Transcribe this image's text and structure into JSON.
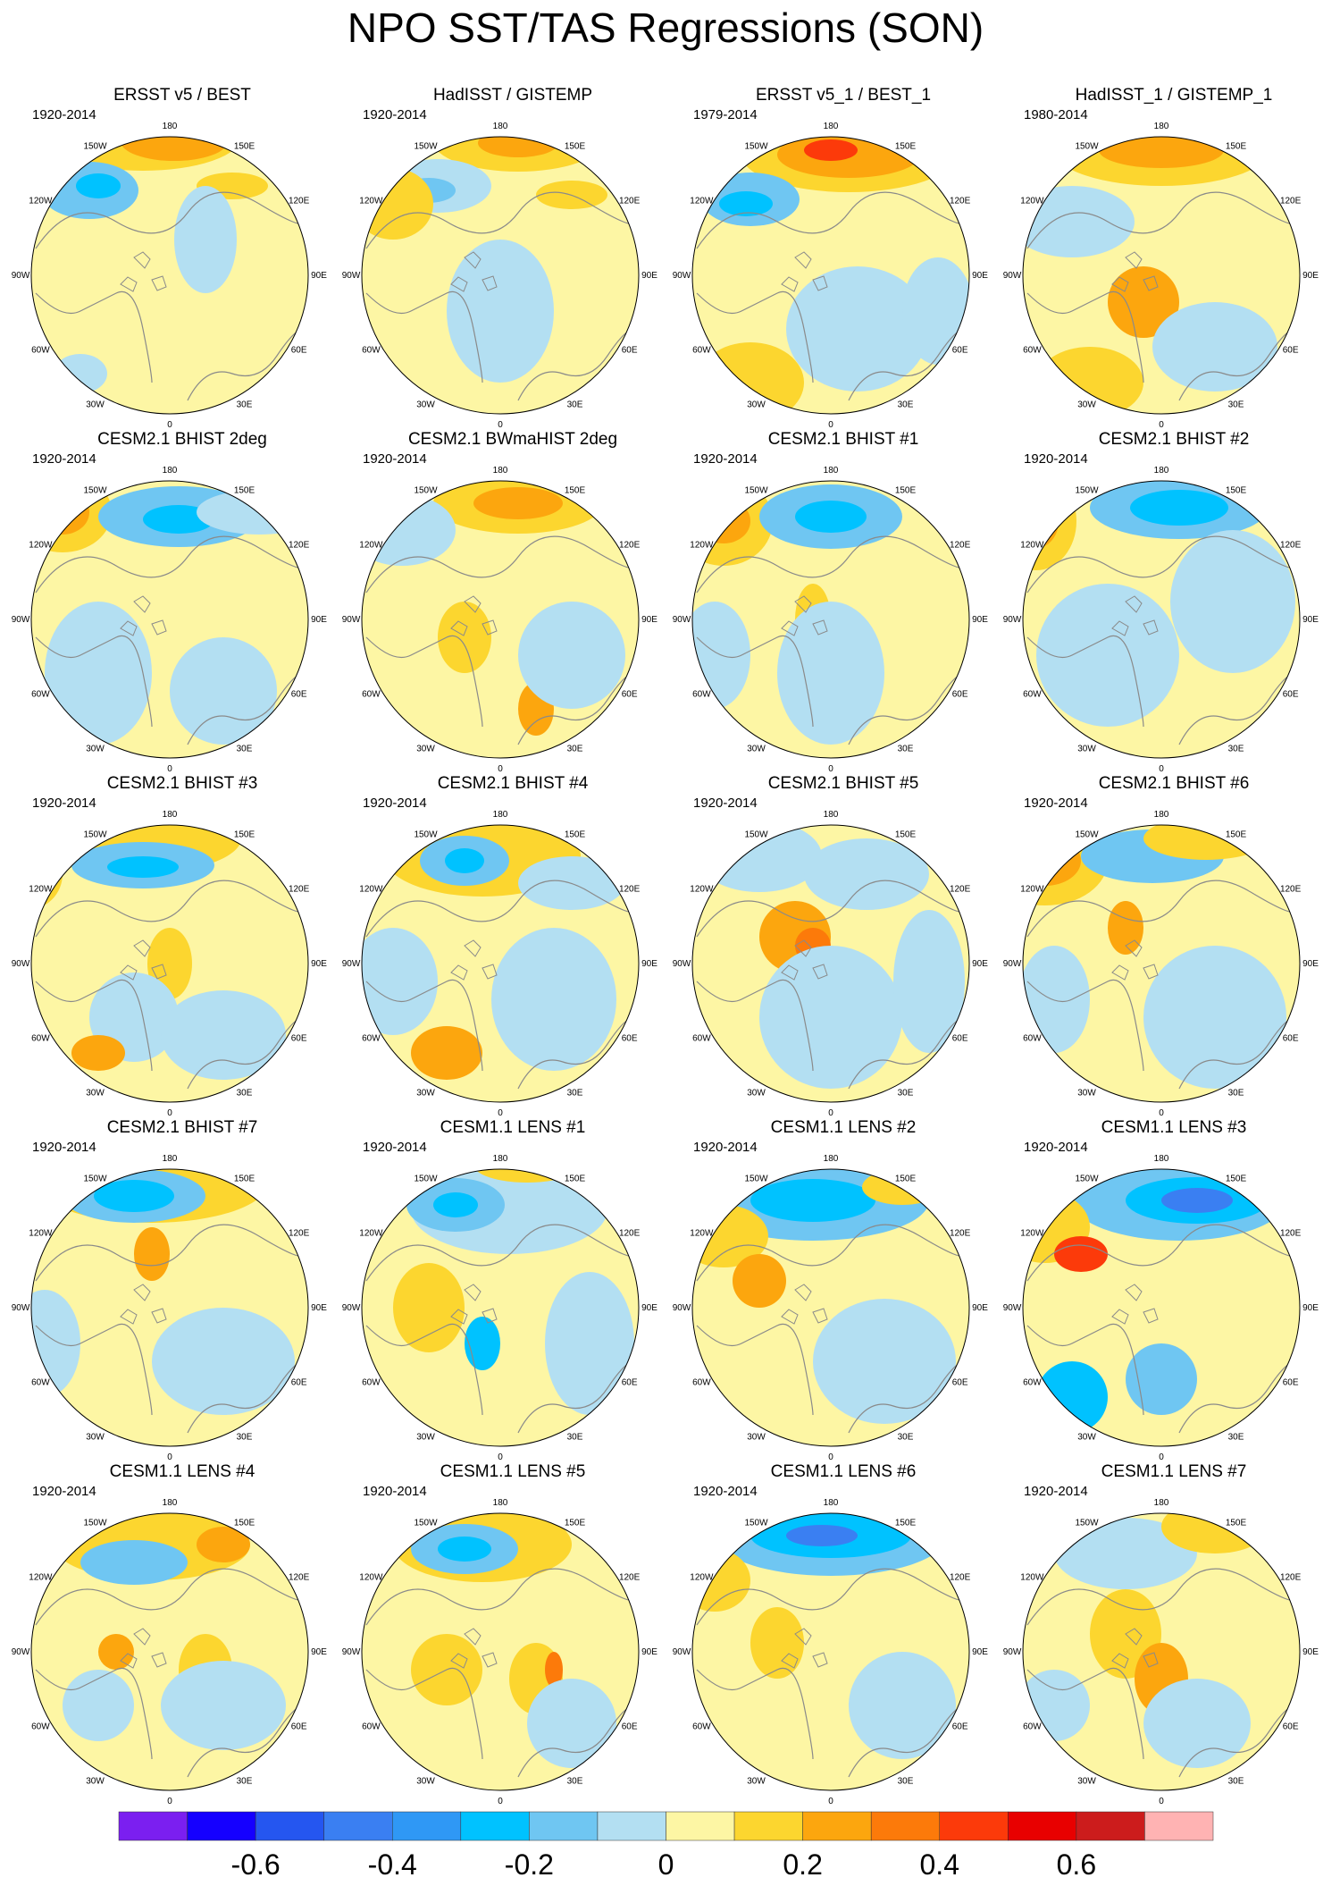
{
  "title": "NPO SST/TAS Regressions (SON)",
  "lon_labels": [
    "180",
    "150E",
    "120E",
    "90E",
    "60E",
    "30E",
    "0",
    "30W",
    "60W",
    "90W",
    "120W",
    "150W"
  ],
  "panels": [
    {
      "title": "ERSST v5 / BEST",
      "period": "1920-2014"
    },
    {
      "title": "HadISST / GISTEMP",
      "period": "1920-2014"
    },
    {
      "title": "ERSST v5_1 / BEST_1",
      "period": "1979-2014"
    },
    {
      "title": "HadISST_1 / GISTEMP_1",
      "period": "1980-2014"
    },
    {
      "title": "CESM2.1 BHIST 2deg",
      "period": "1920-2014"
    },
    {
      "title": "CESM2.1 BWmaHIST 2deg",
      "period": "1920-2014"
    },
    {
      "title": "CESM2.1 BHIST #1",
      "period": "1920-2014"
    },
    {
      "title": "CESM2.1 BHIST #2",
      "period": "1920-2014"
    },
    {
      "title": "CESM2.1 BHIST #3",
      "period": "1920-2014"
    },
    {
      "title": "CESM2.1 BHIST #4",
      "period": "1920-2014"
    },
    {
      "title": "CESM2.1 BHIST #5",
      "period": "1920-2014"
    },
    {
      "title": "CESM2.1 BHIST #6",
      "period": "1920-2014"
    },
    {
      "title": "CESM2.1 BHIST #7",
      "period": "1920-2014"
    },
    {
      "title": "CESM1.1 LENS #1",
      "period": "1920-2014"
    },
    {
      "title": "CESM1.1 LENS #2",
      "period": "1920-2014"
    },
    {
      "title": "CESM1.1 LENS #3",
      "period": "1920-2014"
    },
    {
      "title": "CESM1.1 LENS #4",
      "period": "1920-2014"
    },
    {
      "title": "CESM1.1 LENS #5",
      "period": "1920-2014"
    },
    {
      "title": "CESM1.1 LENS #6",
      "period": "1920-2014"
    },
    {
      "title": "CESM1.1 LENS #7",
      "period": "1920-2014"
    }
  ],
  "colorbar": {
    "colors": [
      "#7b1ff0",
      "#1500ff",
      "#2556f0",
      "#3a7ff2",
      "#2f98f5",
      "#00c2ff",
      "#6fc6f2",
      "#b3dff2",
      "#fdf6a4",
      "#fcd62f",
      "#fca60e",
      "#fc7a0a",
      "#fc3a0a",
      "#e80000",
      "#cc1c1c",
      "#ffb3b3"
    ],
    "labels": [
      "-0.6",
      "-0.4",
      "-0.2",
      "0",
      "0.2",
      "0.4",
      "0.6"
    ]
  },
  "colors": {
    "ocean_base": "#fdf6a4",
    "land_outline": "#8a8a8a"
  }
}
